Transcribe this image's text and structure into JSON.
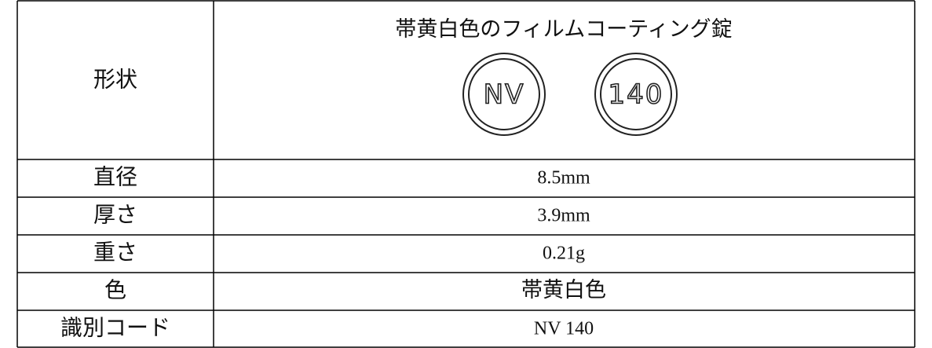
{
  "table": {
    "shape": {
      "label": "形状",
      "description": "帯黄白色のフィルムコーティング錠",
      "markings": [
        "NV",
        "140"
      ]
    },
    "rows": [
      [
        "直径",
        "8.5mm"
      ],
      [
        "厚さ",
        "3.9mm"
      ],
      [
        "重さ",
        "0.21g"
      ],
      [
        "色",
        "帯黄白色"
      ],
      [
        "識別コード",
        "NV 140"
      ]
    ]
  }
}
